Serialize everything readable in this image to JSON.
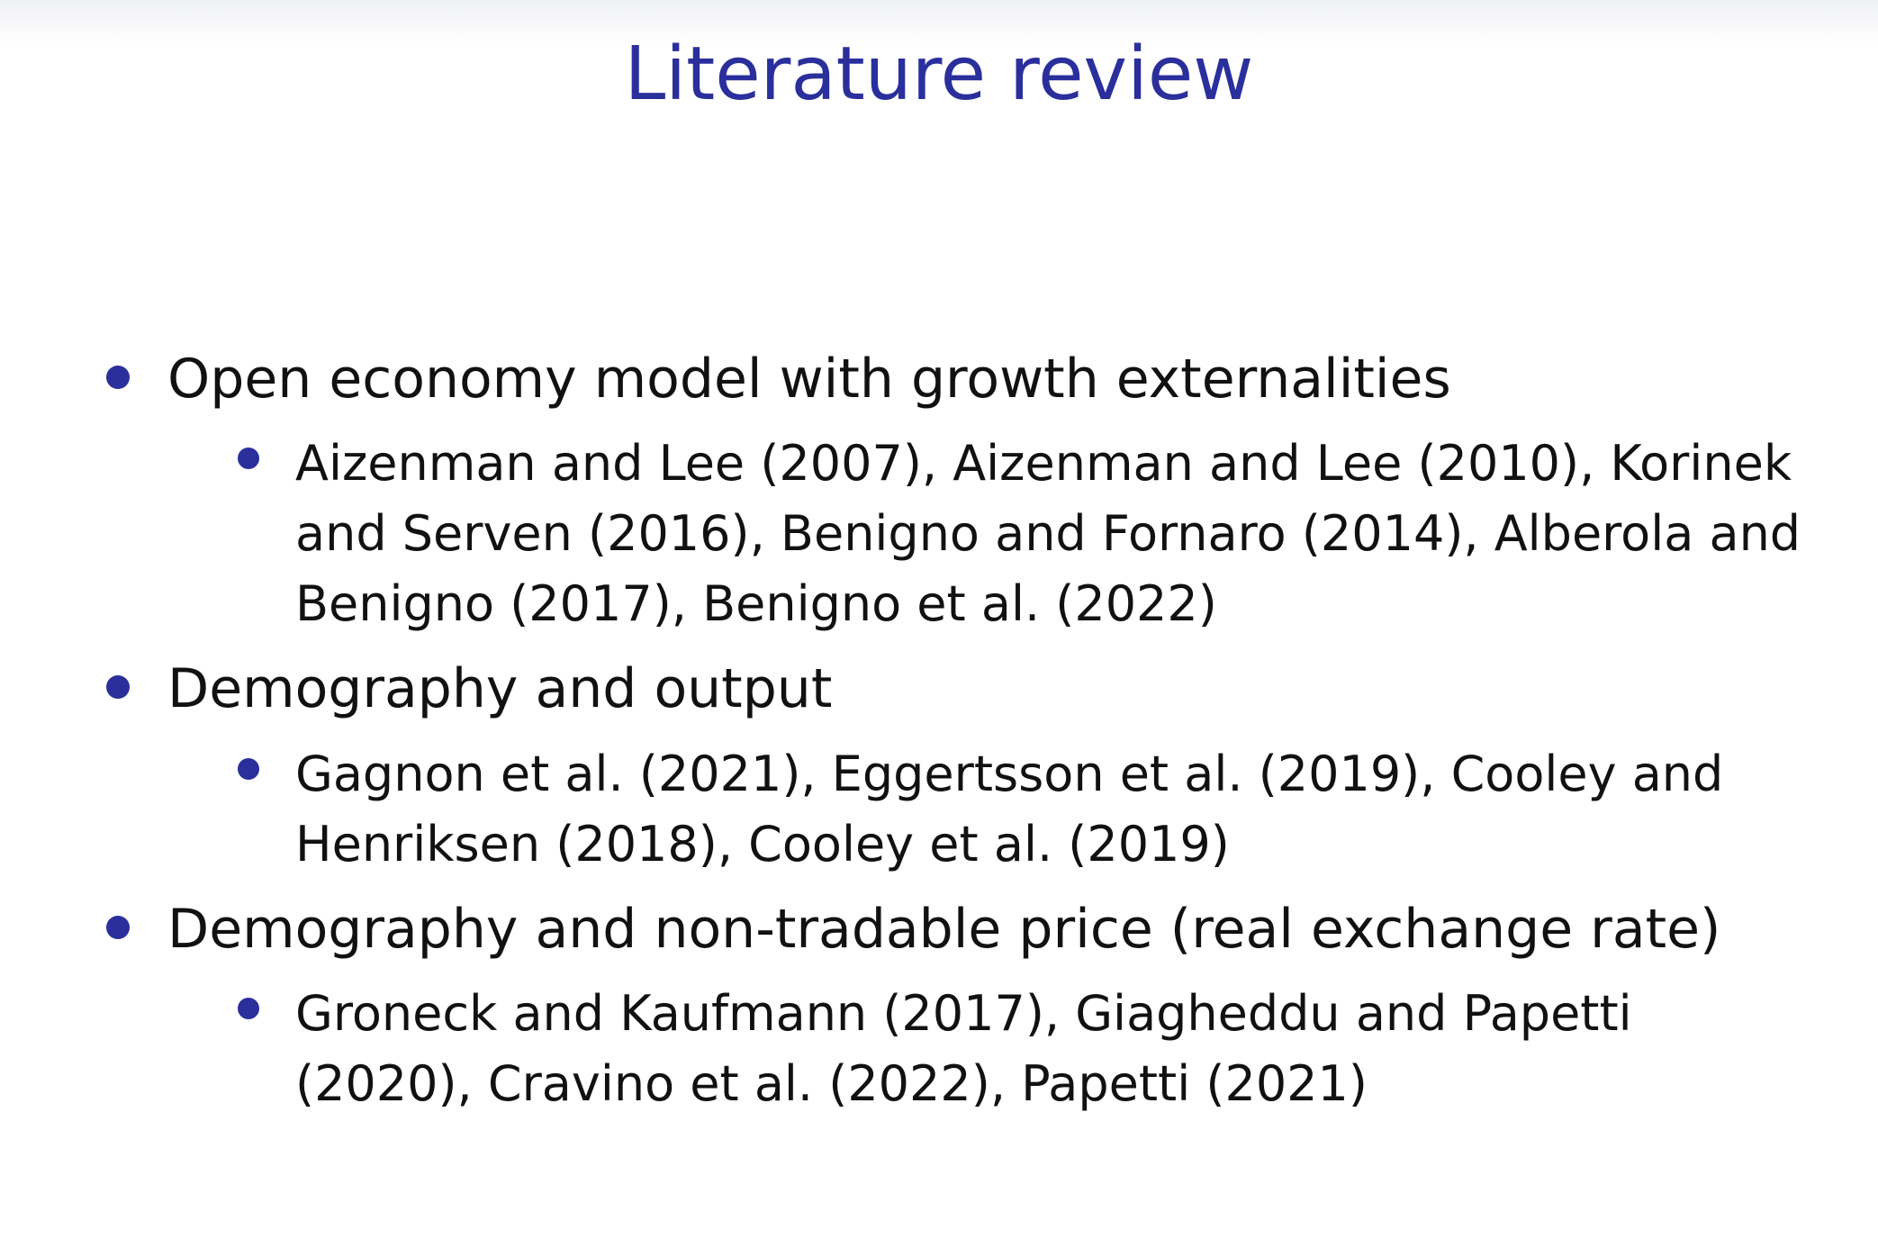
{
  "slide": {
    "title": "Literature review",
    "accent_color": "#2a2f9c",
    "sections": [
      {
        "heading": "Open economy model with growth externalities",
        "items": [
          {
            "lines": [
              "Aizenman and Lee (2007), Aizenman and Lee (2010), Korinek",
              "and Serven (2016), Benigno and Fornaro (2014), Alberola and",
              "Benigno (2017), Benigno et al. (2022)"
            ]
          }
        ]
      },
      {
        "heading": "Demography and output",
        "items": [
          {
            "lines": [
              "Gagnon et al. (2021), Eggertsson et al. (2019), Cooley and",
              "Henriksen (2018), Cooley et al. (2019)"
            ]
          }
        ]
      },
      {
        "heading": "Demography and non-tradable price (real exchange rate)",
        "items": [
          {
            "lines": [
              "Groneck and Kaufmann (2017), Giagheddu and Papetti",
              "(2020), Cravino et al. (2022), Papetti (2021)"
            ]
          }
        ]
      }
    ]
  }
}
